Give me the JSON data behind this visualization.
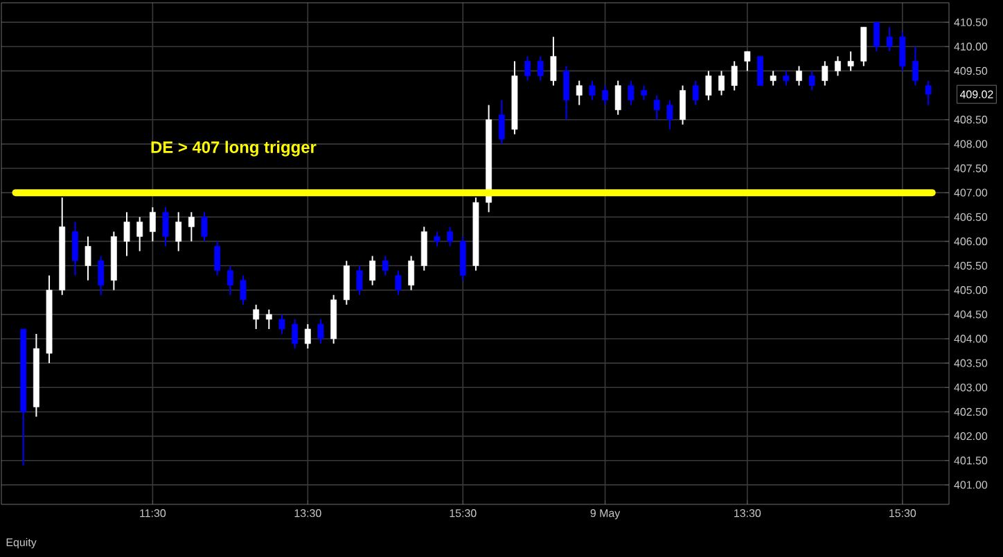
{
  "chart_data": {
    "type": "candlestick",
    "categories": [
      null,
      null,
      null,
      null,
      null,
      null,
      null,
      null,
      null,
      null,
      "11:30",
      null,
      null,
      null,
      null,
      null,
      null,
      null,
      null,
      null,
      null,
      null,
      "13:30",
      null,
      null,
      null,
      null,
      null,
      null,
      null,
      null,
      null,
      null,
      null,
      "15:30",
      null,
      null,
      null,
      null,
      null,
      null,
      null,
      null,
      null,
      null,
      "9 May",
      null,
      null,
      null,
      null,
      null,
      null,
      null,
      null,
      null,
      null,
      "13:30",
      null,
      null,
      null,
      null,
      null,
      null,
      null,
      null,
      null,
      null,
      null,
      "15:30",
      null,
      null
    ],
    "ohlc": [
      [
        404.2,
        404.2,
        401.4,
        402.5
      ],
      [
        402.6,
        404.1,
        402.4,
        403.8
      ],
      [
        403.7,
        405.3,
        403.5,
        405.0
      ],
      [
        405.0,
        406.9,
        404.9,
        406.3
      ],
      [
        406.2,
        406.4,
        405.3,
        405.6
      ],
      [
        405.5,
        406.1,
        405.2,
        405.9
      ],
      [
        405.6,
        405.7,
        404.9,
        405.1
      ],
      [
        405.2,
        406.2,
        405.0,
        406.1
      ],
      [
        406.0,
        406.6,
        405.7,
        406.4
      ],
      [
        406.1,
        406.5,
        405.8,
        406.4
      ],
      [
        406.2,
        406.7,
        406.0,
        406.6
      ],
      [
        406.6,
        406.7,
        405.9,
        406.1
      ],
      [
        406.0,
        406.6,
        405.8,
        406.4
      ],
      [
        406.3,
        406.6,
        406.0,
        406.5
      ],
      [
        406.5,
        406.6,
        406.0,
        406.1
      ],
      [
        405.9,
        406.0,
        405.3,
        405.4
      ],
      [
        405.4,
        405.5,
        404.9,
        405.1
      ],
      [
        405.2,
        405.3,
        404.7,
        404.8
      ],
      [
        404.4,
        404.7,
        404.2,
        404.6
      ],
      [
        404.4,
        404.6,
        404.2,
        404.5
      ],
      [
        404.4,
        404.5,
        404.1,
        404.2
      ],
      [
        404.3,
        404.4,
        403.8,
        403.9
      ],
      [
        403.9,
        404.3,
        403.8,
        404.2
      ],
      [
        404.3,
        404.4,
        403.9,
        404.0
      ],
      [
        404.0,
        404.9,
        403.9,
        404.8
      ],
      [
        404.8,
        405.6,
        404.7,
        405.5
      ],
      [
        405.4,
        405.5,
        404.9,
        405.0
      ],
      [
        405.2,
        405.7,
        405.1,
        405.6
      ],
      [
        405.6,
        405.7,
        405.3,
        405.4
      ],
      [
        405.3,
        405.4,
        404.9,
        405.0
      ],
      [
        405.1,
        405.7,
        405.0,
        405.6
      ],
      [
        405.5,
        406.3,
        405.4,
        406.2
      ],
      [
        406.1,
        406.2,
        405.9,
        406.0
      ],
      [
        406.2,
        406.3,
        405.9,
        406.0
      ],
      [
        406.0,
        406.1,
        405.2,
        405.3
      ],
      [
        405.5,
        406.9,
        405.4,
        406.8
      ],
      [
        406.8,
        408.8,
        406.6,
        408.5
      ],
      [
        408.6,
        408.9,
        408.0,
        408.1
      ],
      [
        408.3,
        409.7,
        408.2,
        409.4
      ],
      [
        409.7,
        409.8,
        409.3,
        409.4
      ],
      [
        409.7,
        409.8,
        409.3,
        409.4
      ],
      [
        409.3,
        410.2,
        409.2,
        409.8
      ],
      [
        409.5,
        409.6,
        408.5,
        408.9
      ],
      [
        409.0,
        409.3,
        408.8,
        409.2
      ],
      [
        409.2,
        409.3,
        408.9,
        409.0
      ],
      [
        409.1,
        409.2,
        408.8,
        408.9
      ],
      [
        408.7,
        409.3,
        408.6,
        409.2
      ],
      [
        409.2,
        409.3,
        408.8,
        408.9
      ],
      [
        409.1,
        409.2,
        408.9,
        409.0
      ],
      [
        408.9,
        409.0,
        408.5,
        408.7
      ],
      [
        408.8,
        408.9,
        408.3,
        408.5
      ],
      [
        408.5,
        409.2,
        408.4,
        409.1
      ],
      [
        409.2,
        409.3,
        408.8,
        408.9
      ],
      [
        409.0,
        409.5,
        408.9,
        409.4
      ],
      [
        409.1,
        409.5,
        409.0,
        409.4
      ],
      [
        409.2,
        409.7,
        409.1,
        409.6
      ],
      [
        409.7,
        409.9,
        409.5,
        409.9
      ],
      [
        409.8,
        409.8,
        409.2,
        409.2
      ],
      [
        409.3,
        409.5,
        409.2,
        409.4
      ],
      [
        409.4,
        409.5,
        409.2,
        409.3
      ],
      [
        409.3,
        409.6,
        409.2,
        409.5
      ],
      [
        409.4,
        409.5,
        409.1,
        409.2
      ],
      [
        409.3,
        409.7,
        409.2,
        409.6
      ],
      [
        409.5,
        409.8,
        409.4,
        409.7
      ],
      [
        409.6,
        409.9,
        409.5,
        409.7
      ],
      [
        409.7,
        410.4,
        409.6,
        410.4
      ],
      [
        410.5,
        410.5,
        409.9,
        410.0
      ],
      [
        410.2,
        410.4,
        409.9,
        410.0
      ],
      [
        410.2,
        410.3,
        409.5,
        409.6
      ],
      [
        409.7,
        410.0,
        409.2,
        409.3
      ],
      [
        409.2,
        409.3,
        408.8,
        409.02
      ]
    ],
    "colors": [
      "#0000ff",
      "#ffffff",
      "#ffffff",
      "#ffffff",
      "#0000ff",
      "#ffffff",
      "#0000ff",
      "#ffffff",
      "#ffffff",
      "#ffffff",
      "#ffffff",
      "#0000ff",
      "#ffffff",
      "#ffffff",
      "#0000ff",
      "#0000ff",
      "#0000ff",
      "#0000ff",
      "#ffffff",
      "#ffffff",
      "#0000ff",
      "#0000ff",
      "#ffffff",
      "#0000ff",
      "#ffffff",
      "#ffffff",
      "#0000ff",
      "#ffffff",
      "#0000ff",
      "#0000ff",
      "#ffffff",
      "#ffffff",
      "#0000ff",
      "#0000ff",
      "#0000ff",
      "#ffffff",
      "#ffffff",
      "#0000ff",
      "#ffffff",
      "#0000ff",
      "#0000ff",
      "#ffffff",
      "#0000ff",
      "#ffffff",
      "#0000ff",
      "#0000ff",
      "#ffffff",
      "#0000ff",
      "#0000ff",
      "#0000ff",
      "#0000ff",
      "#ffffff",
      "#0000ff",
      "#ffffff",
      "#ffffff",
      "#ffffff",
      "#ffffff",
      "#0000ff",
      "#ffffff",
      "#0000ff",
      "#ffffff",
      "#0000ff",
      "#ffffff",
      "#ffffff",
      "#ffffff",
      "#ffffff",
      "#0000ff",
      "#0000ff",
      "#0000ff",
      "#0000ff",
      "#0000ff"
    ],
    "ylim": [
      400.6,
      410.9
    ],
    "yticks": [
      {
        "value": 401,
        "label": "401.00"
      },
      {
        "value": 401.5,
        "label": "401.50"
      },
      {
        "value": 402,
        "label": "402.00"
      },
      {
        "value": 402.5,
        "label": "402.50"
      },
      {
        "value": 403,
        "label": "403.00"
      },
      {
        "value": 403.5,
        "label": "403.50"
      },
      {
        "value": 404,
        "label": "404.00"
      },
      {
        "value": 404.5,
        "label": "404.50"
      },
      {
        "value": 405,
        "label": "405.00"
      },
      {
        "value": 405.5,
        "label": "405.50"
      },
      {
        "value": 406,
        "label": "406.00"
      },
      {
        "value": 406.5,
        "label": "406.50"
      },
      {
        "value": 407,
        "label": "407.00"
      },
      {
        "value": 407.5,
        "label": "407.50"
      },
      {
        "value": 408,
        "label": "408.00"
      },
      {
        "value": 408.5,
        "label": "408.50"
      },
      {
        "value": 409.5,
        "label": "409.50"
      },
      {
        "value": 410,
        "label": "410.00"
      },
      {
        "value": 410.5,
        "label": "410.50"
      }
    ],
    "grid": true,
    "ref_lines": [
      {
        "axis": "y",
        "value": 407,
        "label": "DE > 407 long trigger",
        "color": "#ffff00"
      }
    ],
    "annotations": [
      "409.02",
      "Equity"
    ]
  }
}
